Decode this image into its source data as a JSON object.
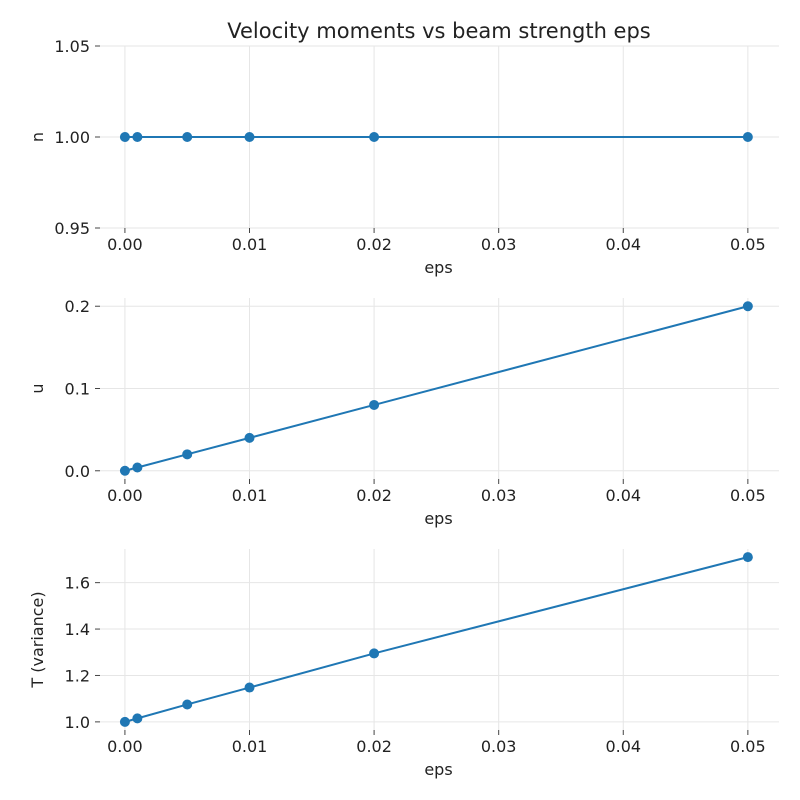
{
  "title": "Velocity moments vs beam strength eps",
  "colors": {
    "series": "#1f77b4",
    "grid": "#e6e6e6",
    "tick": "#444444"
  },
  "chart_data": [
    {
      "type": "line",
      "xlabel": "eps",
      "ylabel": "n",
      "x": [
        0.0,
        0.001,
        0.005,
        0.01,
        0.02,
        0.05
      ],
      "series": [
        {
          "values": [
            1.0,
            1.0,
            1.0,
            1.0,
            1.0,
            1.0
          ]
        }
      ],
      "xlim": [
        -0.002,
        0.0525
      ],
      "ylim": [
        0.95,
        1.05
      ],
      "xticks": [
        0.0,
        0.01,
        0.02,
        0.03,
        0.04,
        0.05
      ],
      "xticklabels": [
        "0.00",
        "0.01",
        "0.02",
        "0.03",
        "0.04",
        "0.05"
      ],
      "yticks": [
        0.95,
        1.0,
        1.05
      ],
      "yticklabels": [
        "0.95",
        "1.00",
        "1.05"
      ],
      "grid": true,
      "markers": true
    },
    {
      "type": "line",
      "xlabel": "eps",
      "ylabel": "u",
      "x": [
        0.0,
        0.001,
        0.005,
        0.01,
        0.02,
        0.05
      ],
      "series": [
        {
          "values": [
            0.0,
            0.004,
            0.02,
            0.04,
            0.08,
            0.2
          ]
        }
      ],
      "xlim": [
        -0.002,
        0.0525
      ],
      "ylim": [
        -0.01,
        0.21
      ],
      "xticks": [
        0.0,
        0.01,
        0.02,
        0.03,
        0.04,
        0.05
      ],
      "xticklabels": [
        "0.00",
        "0.01",
        "0.02",
        "0.03",
        "0.04",
        "0.05"
      ],
      "yticks": [
        0.0,
        0.1,
        0.2
      ],
      "yticklabels": [
        "0.0",
        "0.1",
        "0.2"
      ],
      "grid": true,
      "markers": true
    },
    {
      "type": "line",
      "xlabel": "eps",
      "ylabel": "T (variance)",
      "x": [
        0.0,
        0.001,
        0.005,
        0.01,
        0.02,
        0.05
      ],
      "series": [
        {
          "values": [
            1.0,
            1.015,
            1.075,
            1.148,
            1.295,
            1.71
          ]
        }
      ],
      "xlim": [
        -0.002,
        0.0525
      ],
      "ylim": [
        0.965,
        1.745
      ],
      "xticks": [
        0.0,
        0.01,
        0.02,
        0.03,
        0.04,
        0.05
      ],
      "xticklabels": [
        "0.00",
        "0.01",
        "0.02",
        "0.03",
        "0.04",
        "0.05"
      ],
      "yticks": [
        1.0,
        1.2,
        1.4,
        1.6
      ],
      "yticklabels": [
        "1.0",
        "1.2",
        "1.4",
        "1.6"
      ],
      "grid": true,
      "markers": true
    }
  ]
}
